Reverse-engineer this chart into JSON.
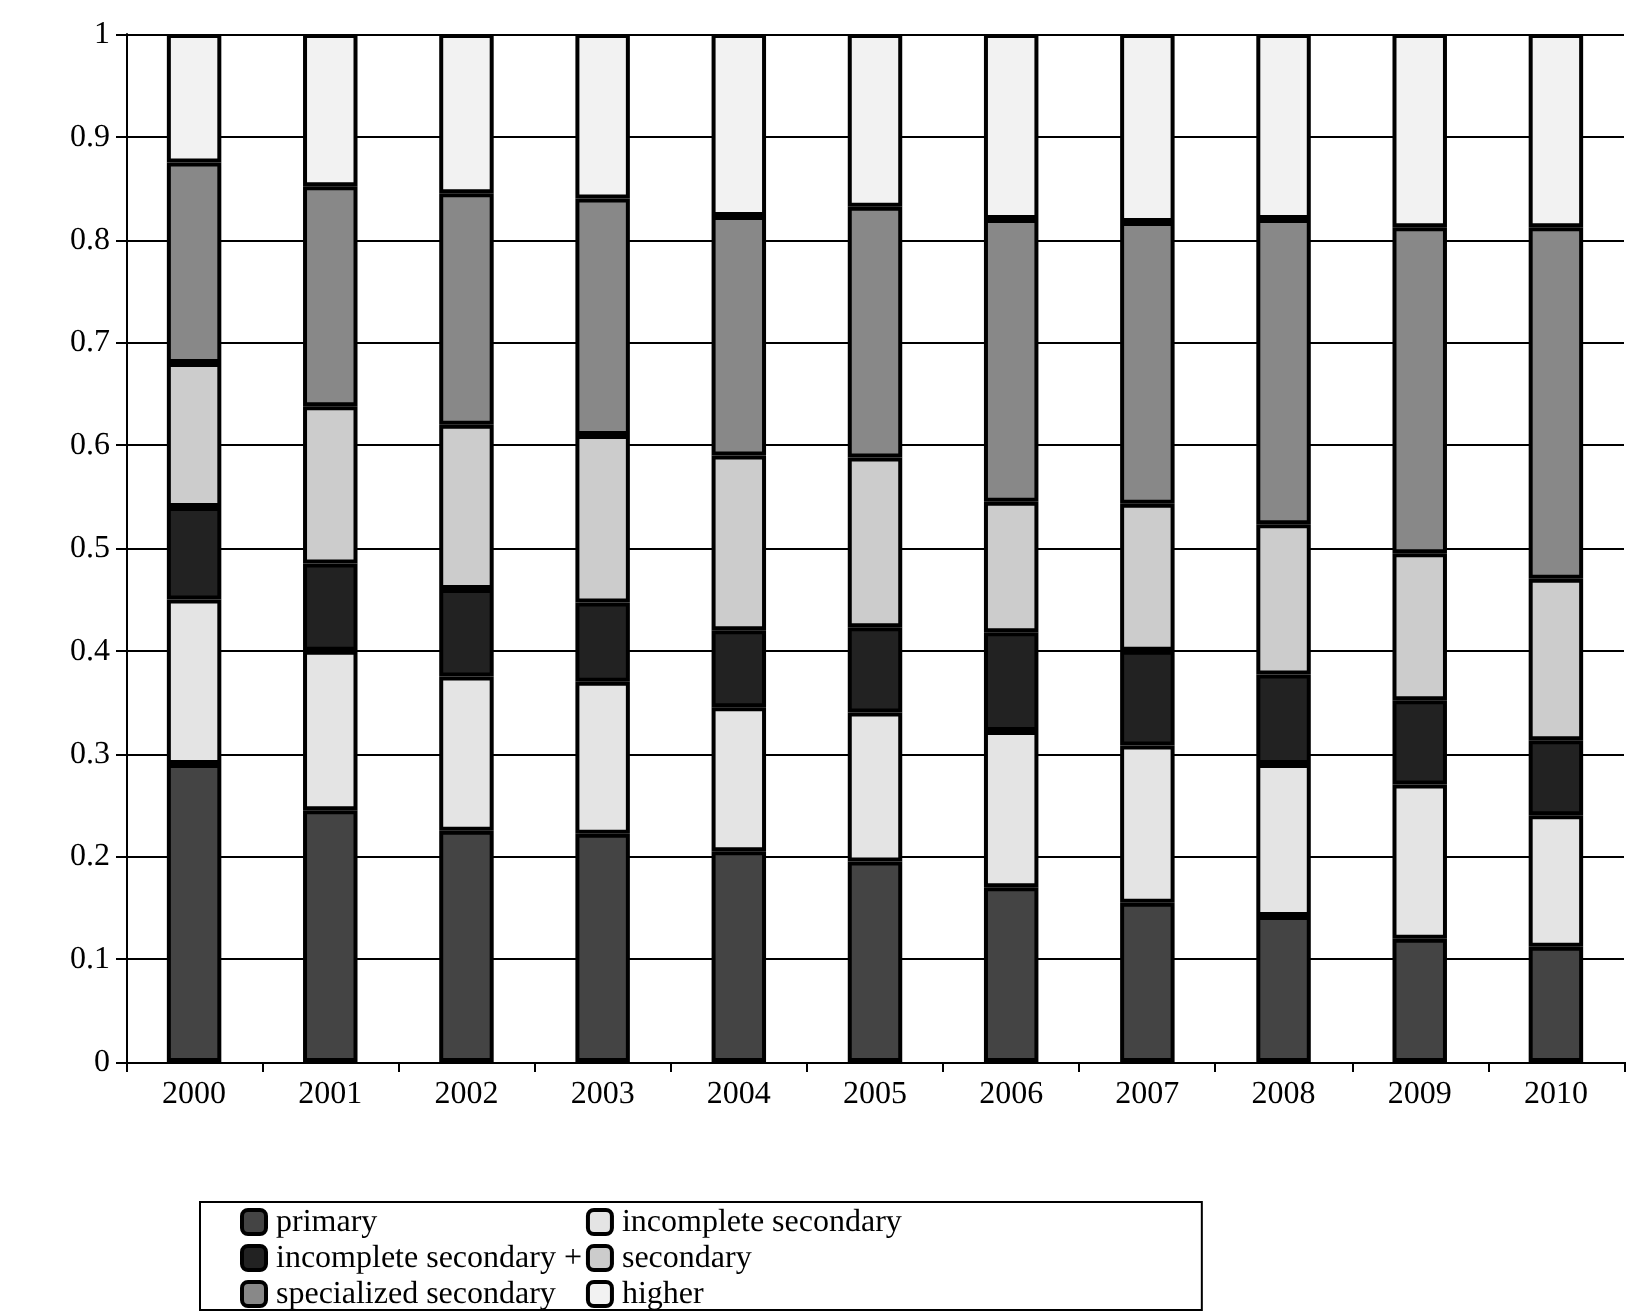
{
  "chart_data": {
    "type": "bar",
    "stacked": true,
    "categories": [
      "2000",
      "2001",
      "2002",
      "2003",
      "2004",
      "2005",
      "2006",
      "2007",
      "2008",
      "2009",
      "2010"
    ],
    "series": [
      {
        "name": "primary",
        "color": "#444444",
        "values": [
          0.29,
          0.245,
          0.225,
          0.222,
          0.205,
          0.195,
          0.17,
          0.155,
          0.142,
          0.12,
          0.112
        ]
      },
      {
        "name": "incomplete secondary",
        "color": "#e4e4e4",
        "values": [
          0.16,
          0.155,
          0.15,
          0.148,
          0.14,
          0.145,
          0.152,
          0.153,
          0.148,
          0.15,
          0.128
        ]
      },
      {
        "name": "incomplete secondary +",
        "color": "#222222",
        "values": [
          0.09,
          0.085,
          0.085,
          0.077,
          0.075,
          0.083,
          0.096,
          0.092,
          0.087,
          0.082,
          0.073
        ]
      },
      {
        "name": "secondary",
        "color": "#cccccc",
        "values": [
          0.14,
          0.153,
          0.16,
          0.163,
          0.17,
          0.165,
          0.127,
          0.143,
          0.146,
          0.143,
          0.157
        ]
      },
      {
        "name": "specialized secondary",
        "color": "#888888",
        "values": [
          0.195,
          0.214,
          0.225,
          0.23,
          0.233,
          0.244,
          0.275,
          0.274,
          0.297,
          0.317,
          0.342
        ]
      },
      {
        "name": "higher",
        "color": "#f2f2f2",
        "values": [
          0.125,
          0.148,
          0.155,
          0.16,
          0.177,
          0.168,
          0.18,
          0.183,
          0.18,
          0.188,
          0.188
        ]
      }
    ],
    "ylim": [
      0,
      1
    ],
    "yticks": [
      0,
      0.1,
      0.2,
      0.3,
      0.4,
      0.5,
      0.6,
      0.7,
      0.8,
      0.9,
      1
    ],
    "grid": "y",
    "legend": "bottom"
  }
}
